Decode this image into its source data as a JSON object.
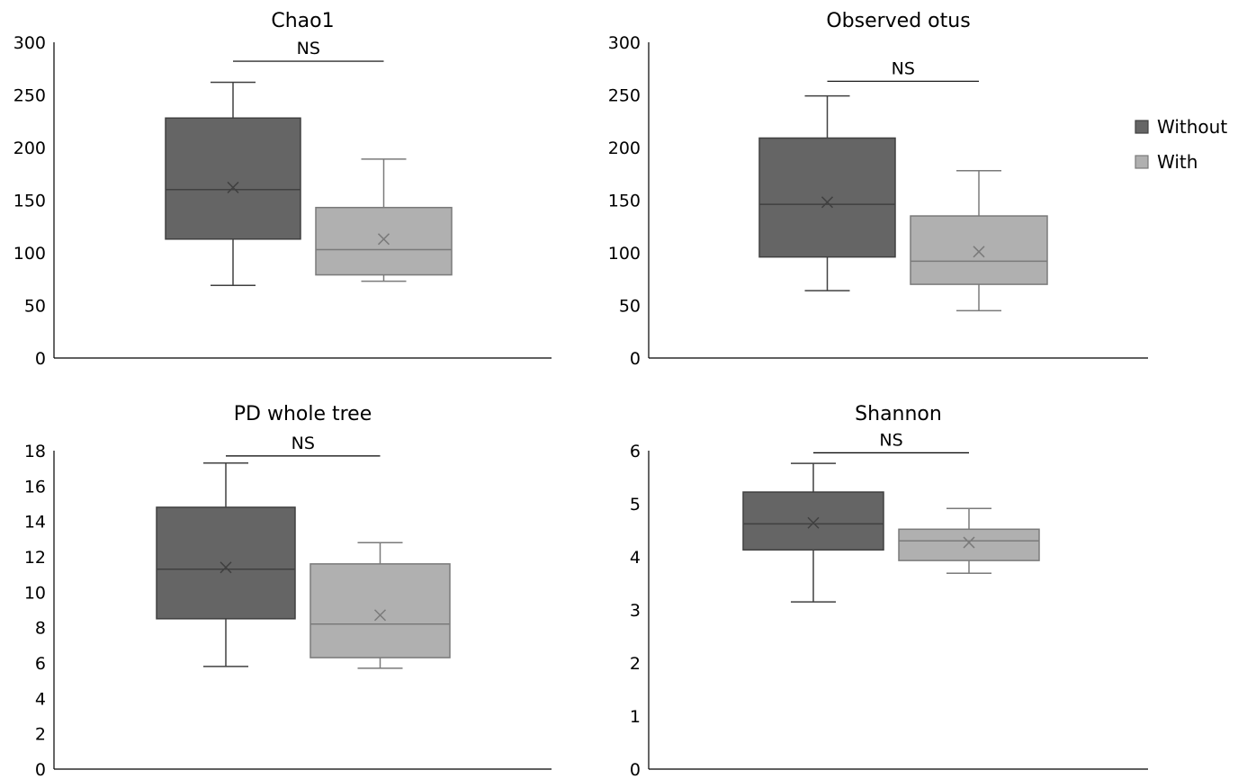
{
  "legend": {
    "placement": "right",
    "items": [
      {
        "label": "Without",
        "fill": "#656565",
        "stroke": "#404040"
      },
      {
        "label": "With",
        "fill": "#b0b0b0",
        "stroke": "#7a7a7a"
      }
    ]
  },
  "chart_data": [
    {
      "type": "box",
      "title": "Chao1",
      "xlabel": "",
      "ylabel": "",
      "ylim": [
        0,
        300
      ],
      "yticks": [
        0,
        50,
        100,
        150,
        200,
        250,
        300
      ],
      "significance": "NS",
      "series": [
        {
          "name": "Without",
          "whisker_low": 69,
          "q1": 113,
          "median": 160,
          "q3": 228,
          "whisker_high": 262,
          "mean": 162
        },
        {
          "name": "With",
          "whisker_low": 73,
          "q1": 79,
          "median": 103,
          "q3": 143,
          "whisker_high": 189,
          "mean": 113
        }
      ],
      "sig_y": 282
    },
    {
      "type": "box",
      "title": "Observed otus",
      "xlabel": "",
      "ylabel": "",
      "ylim": [
        0,
        300
      ],
      "yticks": [
        0,
        50,
        100,
        150,
        200,
        250,
        300
      ],
      "significance": "NS",
      "series": [
        {
          "name": "Without",
          "whisker_low": 64,
          "q1": 96,
          "median": 146,
          "q3": 209,
          "whisker_high": 249,
          "mean": 148
        },
        {
          "name": "With",
          "whisker_low": 45,
          "q1": 70,
          "median": 92,
          "q3": 135,
          "whisker_high": 178,
          "mean": 101
        }
      ],
      "sig_y": 263
    },
    {
      "type": "box",
      "title": "PD whole tree",
      "xlabel": "",
      "ylabel": "",
      "ylim": [
        0,
        18
      ],
      "yticks": [
        0,
        2,
        4,
        6,
        8,
        10,
        12,
        14,
        16,
        18
      ],
      "significance": "NS",
      "series": [
        {
          "name": "Without",
          "whisker_low": 5.8,
          "q1": 8.5,
          "median": 11.3,
          "q3": 14.8,
          "whisker_high": 17.3,
          "mean": 11.4
        },
        {
          "name": "With",
          "whisker_low": 5.7,
          "q1": 6.3,
          "median": 8.2,
          "q3": 11.6,
          "whisker_high": 12.8,
          "mean": 8.7
        }
      ],
      "sig_y": 17.7
    },
    {
      "type": "box",
      "title": "Shannon",
      "xlabel": "",
      "ylabel": "",
      "ylim": [
        0,
        6
      ],
      "yticks": [
        0,
        1,
        2,
        3,
        4,
        5,
        6
      ],
      "significance": "NS",
      "series": [
        {
          "name": "Without",
          "whisker_low": 3.15,
          "q1": 4.13,
          "median": 4.62,
          "q3": 5.22,
          "whisker_high": 5.76,
          "mean": 4.64
        },
        {
          "name": "With",
          "whisker_low": 3.69,
          "q1": 3.93,
          "median": 4.3,
          "q3": 4.52,
          "whisker_high": 4.91,
          "mean": 4.27
        }
      ],
      "sig_y": 5.96
    }
  ]
}
